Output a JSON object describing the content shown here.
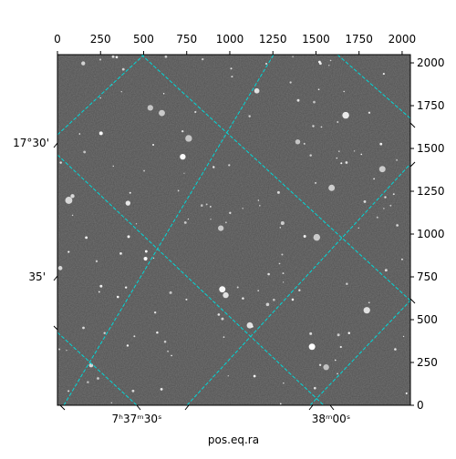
{
  "chart_data": {
    "type": "image",
    "xlabel": "pos.eq.ra",
    "xlim": [
      0,
      2048
    ],
    "xticks": [
      0,
      250,
      500,
      750,
      1000,
      1250,
      1500,
      1750,
      2000
    ],
    "ylim": [
      0,
      2048
    ],
    "yticks": [
      0,
      250,
      500,
      750,
      1000,
      1250,
      1500,
      1750,
      2000
    ],
    "ra_ticks": [
      "7ʰ37ᵐ30ˢ",
      "38ᵐ00ˢ"
    ],
    "dec_ticks": [
      "17°30'",
      "35'"
    ]
  }
}
